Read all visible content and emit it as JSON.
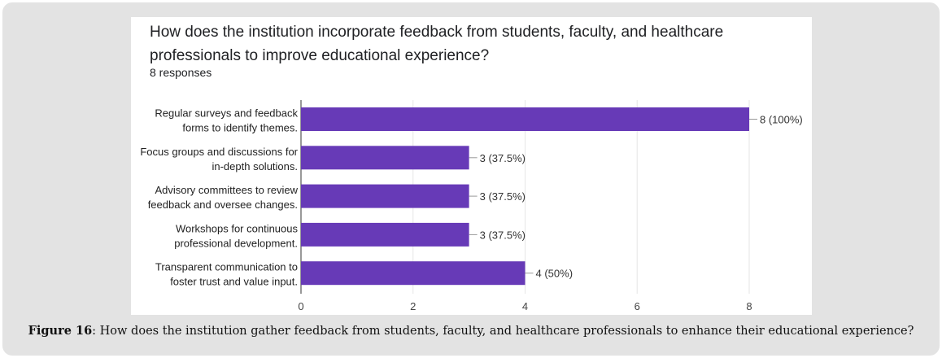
{
  "chart_data": {
    "type": "bar",
    "orientation": "horizontal",
    "title": "How does the institution incorporate feedback from students, faculty, and healthcare professionals to improve educational experience?",
    "subtitle": "8 responses",
    "categories": [
      [
        "Regular surveys and feedback",
        "forms to identify themes."
      ],
      [
        "Focus groups and discussions for",
        "in-depth solutions."
      ],
      [
        "Advisory committees to review",
        "feedback and oversee changes."
      ],
      [
        "Workshops for continuous",
        "professional development."
      ],
      [
        "Transparent communication to",
        "foster trust and value input."
      ]
    ],
    "values": [
      8,
      3,
      3,
      3,
      4
    ],
    "data_labels": [
      "8 (100%)",
      "3 (37.5%)",
      "3 (37.5%)",
      "3 (37.5%)",
      "4 (50%)"
    ],
    "xlim": [
      0,
      8
    ],
    "xticks": [
      "0",
      "2",
      "4",
      "6",
      "8"
    ],
    "grid": true,
    "bar_color": "#673ab7"
  },
  "caption": {
    "label": "Figure 16",
    "text": ": How does the institution gather feedback from students, faculty, and healthcare professionals to enhance their educational experience?"
  }
}
